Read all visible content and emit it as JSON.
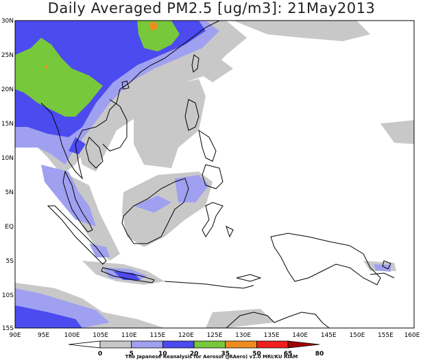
{
  "title": "Daily Averaged PM2.5 [ug/m3]: 21May2013",
  "credit": "The Japanese Reanalysis for Aerosol (JRAero) v1.0 MRI/KU RIAM",
  "lat_labels": [
    "30N",
    "25N",
    "20N",
    "15N",
    "10N",
    "5N",
    "EQ",
    "5S",
    "10S",
    "15S"
  ],
  "lon_labels": [
    "90E",
    "95E",
    "100E",
    "105E",
    "110E",
    "115E",
    "120E",
    "125E",
    "130E",
    "135E",
    "140E",
    "145E",
    "150E",
    "155E",
    "160E"
  ],
  "colorbar": {
    "ticks": [
      "0",
      "5",
      "10",
      "20",
      "35",
      "50",
      "65",
      "80"
    ],
    "colors": [
      "#ffffff",
      "#c8c8c8",
      "#a0a0f0",
      "#4b4bf0",
      "#78c83c",
      "#f08c1e",
      "#f01e1e",
      "#a00000"
    ]
  },
  "legend_colors": {
    "5-10": "#c8c8c8",
    "10-20": "#a0a0f0",
    "20-35": "#4b4bf0",
    "35-50": "#78c83c",
    "50-65": "#f08c1e"
  }
}
